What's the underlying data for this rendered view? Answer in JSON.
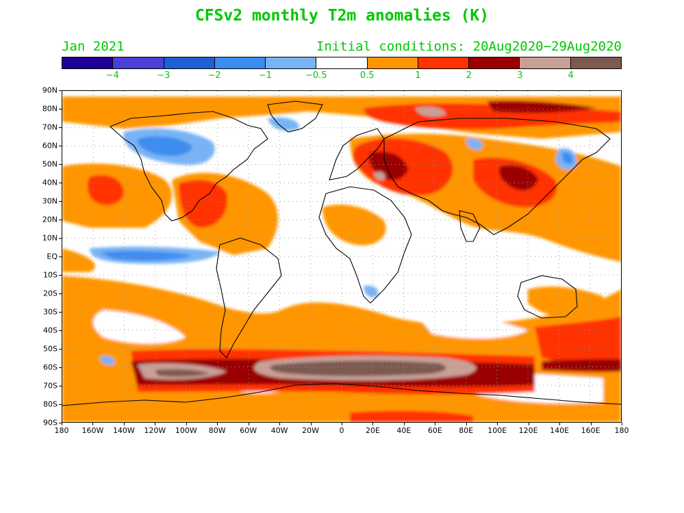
{
  "title": "CFSv2 monthly T2m anomalies (K)",
  "period": "Jan 2021",
  "initial_conditions": "Initial conditions: 20Aug2020−29Aug2020",
  "colorbar": {
    "colors": [
      "#1e0096",
      "#4a3fd6",
      "#1e5fd6",
      "#3c8cf0",
      "#78b4f5",
      "#ffffff",
      "#ff9600",
      "#ff3200",
      "#9b0000",
      "#c8a096",
      "#7d5a50"
    ],
    "labels": [
      "−4",
      "−3",
      "−2",
      "−1",
      "−0.5",
      "0.5",
      "1",
      "2",
      "3",
      "4"
    ]
  },
  "axes": {
    "lat_labels": [
      "90N",
      "80N",
      "70N",
      "60N",
      "50N",
      "40N",
      "30N",
      "20N",
      "10N",
      "EQ",
      "10S",
      "20S",
      "30S",
      "40S",
      "50S",
      "60S",
      "70S",
      "80S",
      "90S"
    ],
    "lon_labels": [
      "180",
      "160W",
      "140W",
      "120W",
      "100W",
      "80W",
      "60W",
      "40W",
      "20W",
      "0",
      "20E",
      "40E",
      "60E",
      "80E",
      "100E",
      "120E",
      "140E",
      "160E",
      "180"
    ]
  },
  "legend_colors": {
    "land_outline": "#000000",
    "grid": "#9a9a9a",
    "text": "#00c800"
  }
}
